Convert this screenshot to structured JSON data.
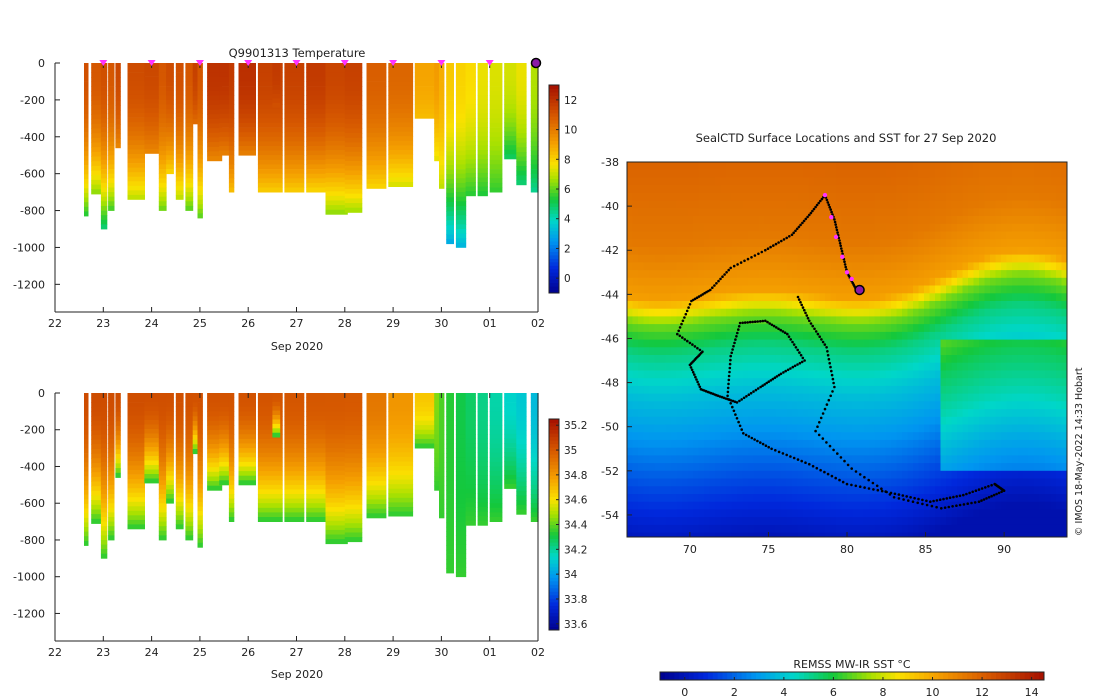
{
  "figure": {
    "credit": "© IMOS 18-May-2022 14:33 Hobart"
  },
  "colors": {
    "axis": "#222222",
    "marker": "#ff33ff",
    "track": "#000000",
    "current_position": "#8b1aa6"
  },
  "chart_data": [
    {
      "type": "heatmap",
      "name": "temperature-section",
      "title": "Q9901313  Temperature",
      "xlabel": "Sep 2020",
      "x_ticks": [
        "22",
        "23",
        "24",
        "25",
        "26",
        "27",
        "28",
        "29",
        "30",
        "01",
        "02"
      ],
      "xlim": [
        22,
        32
      ],
      "ylim": [
        0,
        -1350
      ],
      "y_ticks": [
        0,
        -200,
        -400,
        -600,
        -800,
        -1000,
        -1200
      ],
      "colorbar": {
        "ticks": [
          0,
          2,
          4,
          6,
          8,
          10,
          12
        ],
        "range": [
          -1,
          13
        ]
      },
      "surface_markers_days": [
        23,
        24,
        25,
        26,
        27,
        28,
        29,
        30,
        31
      ],
      "current_day": 32,
      "profiles": [
        {
          "day": 22.6,
          "width": 0.08,
          "depth": 830,
          "surface_value": 11.2,
          "bottom_value": 5.5
        },
        {
          "day": 22.75,
          "width": 0.2,
          "depth": 710,
          "surface_value": 11.0,
          "bottom_value": 6.5
        },
        {
          "day": 22.95,
          "width": 0.12,
          "depth": 900,
          "surface_value": 11.2,
          "bottom_value": 4.8
        },
        {
          "day": 23.1,
          "width": 0.12,
          "depth": 800,
          "surface_value": 11.0,
          "bottom_value": 5.8
        },
        {
          "day": 23.25,
          "width": 0.1,
          "depth": 460,
          "surface_value": 11.4,
          "bottom_value": 9.8
        },
        {
          "day": 23.5,
          "width": 0.35,
          "depth": 740,
          "surface_value": 11.3,
          "bottom_value": 7.0
        },
        {
          "day": 23.85,
          "width": 0.3,
          "depth": 490,
          "surface_value": 11.4,
          "bottom_value": 9.8
        },
        {
          "day": 24.15,
          "width": 0.15,
          "depth": 800,
          "surface_value": 11.0,
          "bottom_value": 6.2
        },
        {
          "day": 24.3,
          "width": 0.15,
          "depth": 600,
          "surface_value": 11.3,
          "bottom_value": 8.0
        },
        {
          "day": 24.5,
          "width": 0.15,
          "depth": 740,
          "surface_value": 11.2,
          "bottom_value": 7.0
        },
        {
          "day": 24.7,
          "width": 0.15,
          "depth": 800,
          "surface_value": 11.0,
          "bottom_value": 6.0
        },
        {
          "day": 24.85,
          "width": 0.1,
          "depth": 330,
          "surface_value": 11.6,
          "bottom_value": 10.5
        },
        {
          "day": 24.95,
          "width": 0.1,
          "depth": 840,
          "surface_value": 11.0,
          "bottom_value": 6.0
        },
        {
          "day": 25.15,
          "width": 0.3,
          "depth": 530,
          "surface_value": 12.0,
          "bottom_value": 9.8
        },
        {
          "day": 25.4,
          "width": 0.25,
          "depth": 500,
          "surface_value": 12.0,
          "bottom_value": 10.0
        },
        {
          "day": 25.6,
          "width": 0.1,
          "depth": 700,
          "surface_value": 11.8,
          "bottom_value": 8.5
        },
        {
          "day": 25.8,
          "width": 0.35,
          "depth": 500,
          "surface_value": 12.1,
          "bottom_value": 10.0
        },
        {
          "day": 26.2,
          "width": 0.5,
          "depth": 700,
          "surface_value": 11.6,
          "bottom_value": 8.2
        },
        {
          "day": 26.5,
          "width": 0.15,
          "depth": 240,
          "surface_value": 11.8,
          "bottom_value": 11.2
        },
        {
          "day": 26.75,
          "width": 0.4,
          "depth": 700,
          "surface_value": 11.6,
          "bottom_value": 8.2
        },
        {
          "day": 27.2,
          "width": 0.45,
          "depth": 700,
          "surface_value": 11.8,
          "bottom_value": 8.0
        },
        {
          "day": 27.6,
          "width": 0.45,
          "depth": 820,
          "surface_value": 11.5,
          "bottom_value": 6.5
        },
        {
          "day": 28.0,
          "width": 0.35,
          "depth": 810,
          "surface_value": 11.6,
          "bottom_value": 6.7
        },
        {
          "day": 28.45,
          "width": 0.4,
          "depth": 680,
          "surface_value": 10.8,
          "bottom_value": 8.0
        },
        {
          "day": 28.9,
          "width": 0.5,
          "depth": 670,
          "surface_value": 10.6,
          "bottom_value": 7.3
        },
        {
          "day": 29.45,
          "width": 0.5,
          "depth": 300,
          "surface_value": 9.0,
          "bottom_value": 8.5
        },
        {
          "day": 29.85,
          "width": 0.12,
          "depth": 530,
          "surface_value": 9.2,
          "bottom_value": 7.5
        },
        {
          "day": 29.95,
          "width": 0.1,
          "depth": 680,
          "surface_value": 8.8,
          "bottom_value": 7.0
        },
        {
          "day": 30.1,
          "width": 0.15,
          "depth": 980,
          "surface_value": 8.2,
          "bottom_value": 3.0
        },
        {
          "day": 30.3,
          "width": 0.2,
          "depth": 1000,
          "surface_value": 8.0,
          "bottom_value": 3.2
        },
        {
          "day": 30.5,
          "width": 0.2,
          "depth": 720,
          "surface_value": 7.8,
          "bottom_value": 5.5
        },
        {
          "day": 30.75,
          "width": 0.2,
          "depth": 720,
          "surface_value": 7.5,
          "bottom_value": 5.4
        },
        {
          "day": 31.0,
          "width": 0.25,
          "depth": 700,
          "surface_value": 7.3,
          "bottom_value": 5.6
        },
        {
          "day": 31.3,
          "width": 0.3,
          "depth": 520,
          "surface_value": 7.2,
          "bottom_value": 5.0
        },
        {
          "day": 31.55,
          "width": 0.2,
          "depth": 660,
          "surface_value": 7.5,
          "bottom_value": 4.8
        },
        {
          "day": 31.85,
          "width": 0.15,
          "depth": 700,
          "surface_value": 6.8,
          "bottom_value": 4.5
        }
      ]
    },
    {
      "type": "heatmap",
      "name": "salinity-section",
      "title": "",
      "xlabel": "Sep 2020",
      "x_ticks": [
        "22",
        "23",
        "24",
        "25",
        "26",
        "27",
        "28",
        "29",
        "30",
        "01",
        "02"
      ],
      "xlim": [
        22,
        32
      ],
      "ylim": [
        0,
        -1350
      ],
      "y_ticks": [
        0,
        -200,
        -400,
        -600,
        -800,
        -1000,
        -1200
      ],
      "colorbar": {
        "ticks": [
          33.6,
          33.8,
          34,
          34.2,
          34.4,
          34.6,
          34.8,
          35,
          35.2
        ],
        "range": [
          33.55,
          35.25
        ]
      },
      "profiles_from": "temperature-section",
      "surface_value_by_day": [
        [
          22,
          35.05
        ],
        [
          28,
          35.0
        ],
        [
          29.4,
          34.7
        ],
        [
          30.0,
          34.35
        ],
        [
          30.6,
          34.25
        ],
        [
          31.2,
          34.15
        ],
        [
          32,
          34.05
        ]
      ],
      "bottom_value": 34.35
    },
    {
      "type": "heatmap",
      "name": "sst-map",
      "title": "SealCTD Surface Locations and SST for 27 Sep 2020",
      "x_ticks": [
        70,
        75,
        80,
        85,
        90
      ],
      "y_ticks": [
        -38,
        -40,
        -42,
        -44,
        -46,
        -48,
        -50,
        -52,
        -54
      ],
      "xlim": [
        66,
        94
      ],
      "ylim": [
        -55,
        -38
      ],
      "colorbar": {
        "label": "REMSS MW-IR SST °C",
        "ticks": [
          0,
          2,
          4,
          6,
          8,
          10,
          12,
          14
        ],
        "range": [
          -1,
          14.5
        ]
      },
      "sst_field": [
        {
          "lat": -38,
          "sst": 11.8
        },
        {
          "lat": -41,
          "sst": 11.3
        },
        {
          "lat": -43.5,
          "sst": 10.2
        },
        {
          "lat": -44.6,
          "sst": 7.0
        },
        {
          "lat": -46,
          "sst": 5.2
        },
        {
          "lat": -48,
          "sst": 3.8
        },
        {
          "lat": -50,
          "sst": 2.8
        },
        {
          "lat": -52,
          "sst": 1.5
        },
        {
          "lat": -55,
          "sst": -0.2
        }
      ],
      "track": [
        [
          80.6,
          -43.8
        ],
        [
          80.0,
          -43.0
        ],
        [
          79.6,
          -41.8
        ],
        [
          79.2,
          -40.6
        ],
        [
          78.6,
          -39.5
        ],
        [
          77.6,
          -40.4
        ],
        [
          76.5,
          -41.3
        ],
        [
          74.8,
          -42.0
        ],
        [
          72.6,
          -42.8
        ],
        [
          71.3,
          -43.8
        ],
        [
          70.1,
          -44.3
        ],
        [
          69.2,
          -45.8
        ],
        [
          70.8,
          -46.6
        ],
        [
          70.0,
          -47.2
        ],
        [
          70.7,
          -48.3
        ],
        [
          71.8,
          -48.6
        ],
        [
          73.0,
          -48.9
        ],
        [
          74.5,
          -48.2
        ],
        [
          75.8,
          -47.6
        ],
        [
          77.3,
          -47.0
        ],
        [
          76.2,
          -45.8
        ],
        [
          74.8,
          -45.2
        ],
        [
          73.2,
          -45.3
        ],
        [
          72.6,
          -46.8
        ],
        [
          72.4,
          -48.6
        ],
        [
          73.4,
          -50.3
        ],
        [
          75.2,
          -51.0
        ],
        [
          77.6,
          -51.7
        ],
        [
          80.0,
          -52.6
        ],
        [
          82.8,
          -53.0
        ],
        [
          85.3,
          -53.4
        ],
        [
          87.4,
          -53.1
        ],
        [
          89.4,
          -52.6
        ],
        [
          90.0,
          -52.9
        ],
        [
          88.4,
          -53.4
        ],
        [
          86.0,
          -53.7
        ],
        [
          83.0,
          -53.2
        ],
        [
          80.3,
          -51.9
        ],
        [
          78.0,
          -50.2
        ],
        [
          79.2,
          -48.2
        ],
        [
          78.7,
          -46.4
        ],
        [
          77.6,
          -45.2
        ],
        [
          76.8,
          -44.0
        ]
      ],
      "recent_positions": [
        [
          78.6,
          -39.5
        ],
        [
          79.0,
          -40.5
        ],
        [
          79.3,
          -41.4
        ],
        [
          79.7,
          -42.3
        ],
        [
          80.0,
          -43.0
        ],
        [
          80.3,
          -43.3
        ]
      ],
      "current_position": [
        80.8,
        -43.8
      ]
    }
  ]
}
